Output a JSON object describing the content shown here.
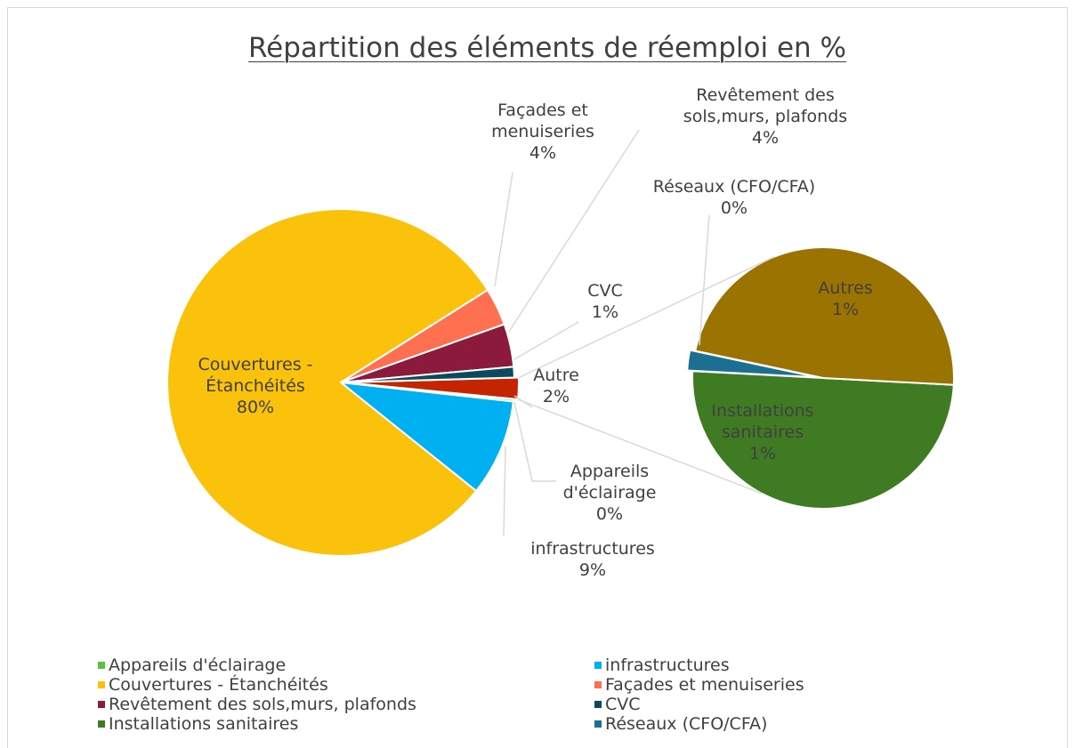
{
  "chart_data": {
    "type": "pie-of-pie",
    "title": "Répartition des éléments de réemploi en %",
    "main": {
      "categories": [
        "Appareils d'éclairage",
        "infrastructures",
        "Couvertures - Étanchéités",
        "Façades et menuiseries",
        "Revêtement des sols,murs, plafonds",
        "CVC"
      ],
      "values": [
        0.2,
        9,
        80.3,
        3.5,
        4,
        1
      ],
      "value_labels": [
        "0%",
        "9%",
        "80%",
        "4%",
        "4%",
        "1%"
      ],
      "colors": [
        "#5dbf3f",
        "#00b0f0",
        "#fac20a",
        "#ff7051",
        "#8b1a3c",
        "#0a4a5e"
      ]
    },
    "other": {
      "label": "Autre",
      "value": 2,
      "value_label": "2%",
      "color": "#c42400"
    },
    "secondary": {
      "categories": [
        "Installations sanitaires",
        "Réseaux (CFO/CFA)",
        "Autres"
      ],
      "values": [
        1,
        0.05,
        0.95
      ],
      "value_labels": [
        "1%",
        "0%",
        "1%"
      ],
      "colors": [
        "#3e7b22",
        "#1b6f90",
        "#9a7300"
      ]
    },
    "legend": "bottom"
  }
}
